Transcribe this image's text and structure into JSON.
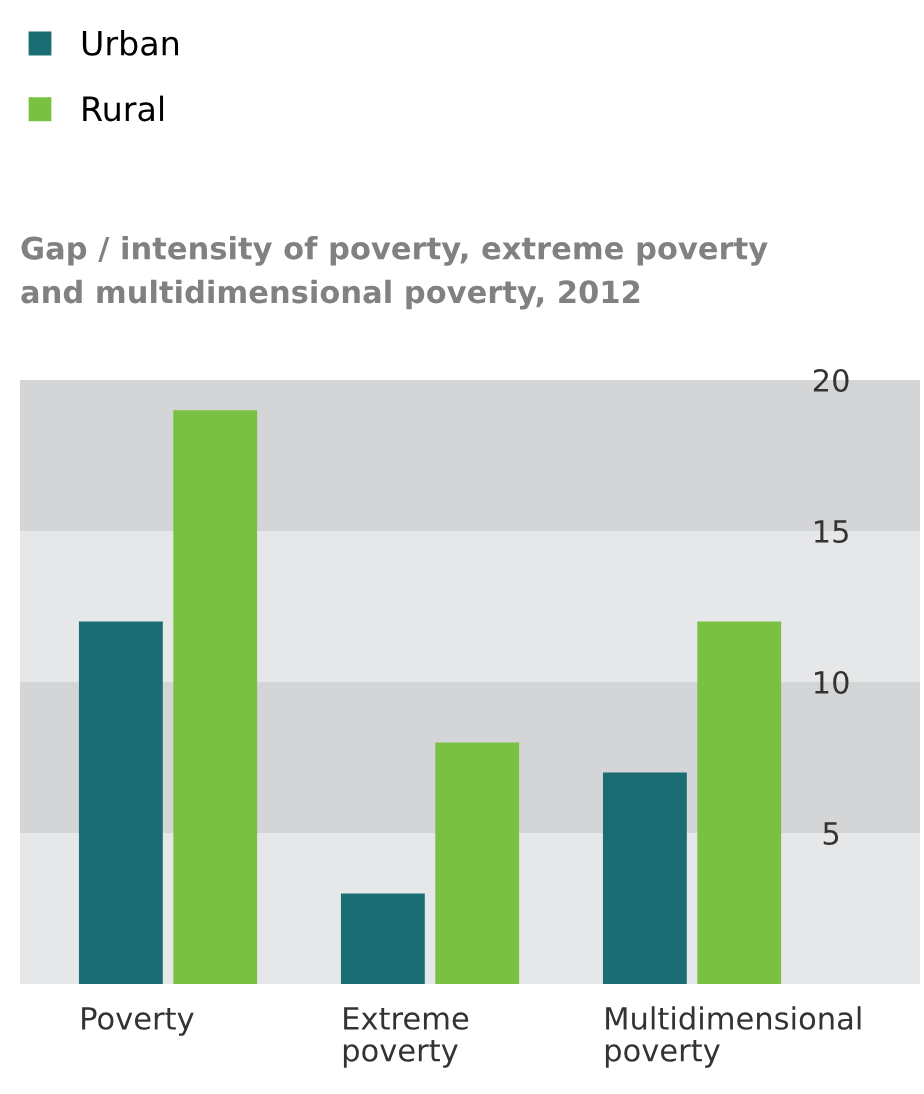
{
  "chart_data": {
    "type": "bar",
    "title": "Gap / intensity of poverty, extreme poverty\nand multidimensional poverty, 2012",
    "categories": [
      "Poverty",
      "Extreme\npoverty",
      "Multidimensional\npoverty"
    ],
    "series": [
      {
        "name": "Urban",
        "color": "#1a6e73",
        "values": [
          12,
          3,
          7
        ]
      },
      {
        "name": "Rural",
        "color": "#7ac143",
        "values": [
          19,
          8,
          12
        ]
      }
    ],
    "ylim": [
      0,
      20
    ],
    "yticks": [
      5,
      10,
      15,
      20
    ],
    "grid": false,
    "legend": "top left",
    "bands": [
      {
        "axis": "y",
        "from": 0,
        "to": 5,
        "color": "#e6e7e8"
      },
      {
        "axis": "y",
        "from": 5,
        "to": 10,
        "color": "#d4d5d7"
      },
      {
        "axis": "y",
        "from": 10,
        "to": 15,
        "color": "#e6e7e8"
      },
      {
        "axis": "y",
        "from": 15,
        "to": 20,
        "color": "#d4d5d7"
      }
    ]
  }
}
